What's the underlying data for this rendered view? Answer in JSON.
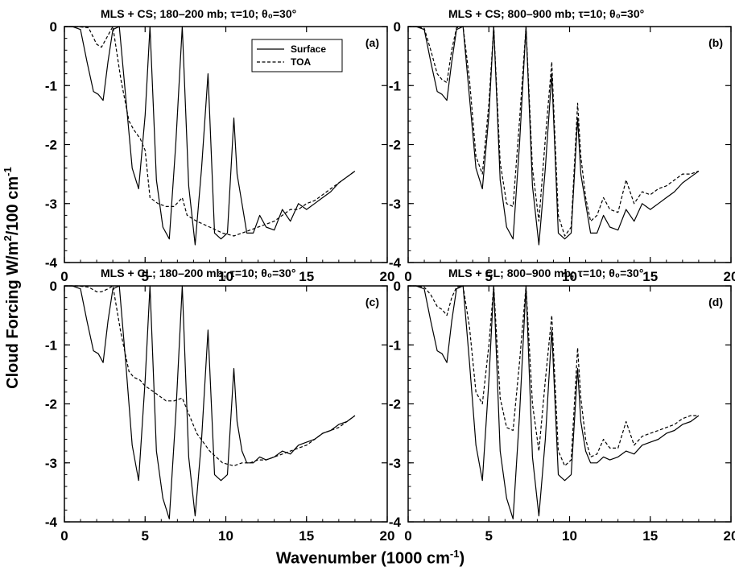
{
  "figure": {
    "ylabel_main": "Cloud Forcing W/m",
    "ylabel_sup1": "2",
    "ylabel_mid": "/100 cm",
    "ylabel_sup2": "-1",
    "xlabel_main": "Wavenumber (1000 cm",
    "xlabel_sup": "-1",
    "xlabel_end": ")"
  },
  "chart_data": [
    {
      "type": "line",
      "panel": "(a)",
      "title": "MLS + CS; 180–200 mb; τ=10; θ₀=30°",
      "xlim": [
        0,
        20
      ],
      "ylim": [
        -4,
        0
      ],
      "xticks": [
        "0",
        "5",
        "10",
        "15",
        "20"
      ],
      "yticks": [
        "0",
        "-1",
        "-2",
        "-3",
        "-4"
      ],
      "legend": [
        "Surface",
        "TOA"
      ],
      "series": [
        {
          "name": "Surface",
          "style": "solid",
          "x": [
            0,
            0.5,
            1.0,
            1.4,
            1.8,
            2.1,
            2.4,
            2.7,
            3.0,
            3.4,
            3.8,
            4.2,
            4.6,
            5.0,
            5.3,
            5.7,
            6.1,
            6.5,
            6.9,
            7.3,
            7.7,
            8.1,
            8.5,
            8.9,
            9.3,
            9.7,
            10.1,
            10.5,
            10.7,
            11.0,
            11.3,
            11.7,
            12.1,
            12.5,
            13.0,
            13.5,
            14.0,
            14.5,
            15.0,
            15.5,
            16.0,
            16.5,
            17.0,
            17.5,
            18.0
          ],
          "y": [
            0,
            0,
            -0.05,
            -0.6,
            -1.1,
            -1.15,
            -1.25,
            -0.6,
            -0.05,
            0,
            -1.2,
            -2.4,
            -2.75,
            -1.5,
            0,
            -2.6,
            -3.4,
            -3.6,
            -2.0,
            0,
            -2.7,
            -3.7,
            -2.4,
            -0.8,
            -3.5,
            -3.6,
            -3.5,
            -1.55,
            -2.5,
            -3.0,
            -3.5,
            -3.5,
            -3.2,
            -3.4,
            -3.45,
            -3.1,
            -3.3,
            -3.0,
            -3.1,
            -3.0,
            -2.9,
            -2.8,
            -2.65,
            -2.55,
            -2.45
          ]
        },
        {
          "name": "TOA",
          "style": "dashed",
          "x": [
            0,
            0.8,
            1.5,
            2.0,
            2.3,
            2.7,
            3.0,
            3.5,
            4.0,
            4.3,
            4.7,
            5.0,
            5.3,
            5.8,
            6.3,
            6.8,
            7.3,
            7.6,
            8.2,
            9.0,
            9.8,
            10.5,
            11.0,
            11.5,
            12.0,
            12.5,
            13.0,
            13.5,
            14.0,
            14.5,
            15.0,
            15.5,
            16.0,
            16.5,
            17.0,
            17.5,
            18.0
          ],
          "y": [
            0,
            0,
            -0.02,
            -0.3,
            -0.35,
            -0.15,
            0,
            -0.9,
            -1.6,
            -1.75,
            -1.9,
            -2.1,
            -2.9,
            -3.0,
            -3.05,
            -3.05,
            -2.9,
            -3.2,
            -3.3,
            -3.4,
            -3.5,
            -3.55,
            -3.5,
            -3.45,
            -3.4,
            -3.35,
            -3.3,
            -3.2,
            -3.1,
            -3.1,
            -3.0,
            -2.95,
            -2.85,
            -2.75,
            -2.65,
            -2.55,
            -2.45
          ]
        }
      ]
    },
    {
      "type": "line",
      "panel": "(b)",
      "title": "MLS + CS; 800–900 mb; τ=10; θ₀=30°",
      "xlim": [
        0,
        20
      ],
      "ylim": [
        -4,
        0
      ],
      "xticks": [
        "0",
        "5",
        "10",
        "15",
        "20"
      ],
      "yticks": [
        "0",
        "-1",
        "-2",
        "-3",
        "-4"
      ],
      "series": [
        {
          "name": "Surface",
          "style": "solid",
          "x": [
            0,
            0.5,
            1.0,
            1.4,
            1.8,
            2.1,
            2.4,
            2.7,
            3.0,
            3.4,
            3.8,
            4.2,
            4.6,
            5.0,
            5.3,
            5.7,
            6.1,
            6.5,
            6.9,
            7.3,
            7.7,
            8.1,
            8.5,
            8.9,
            9.3,
            9.7,
            10.1,
            10.5,
            10.7,
            11.0,
            11.3,
            11.7,
            12.1,
            12.5,
            13.0,
            13.5,
            14.0,
            14.5,
            15.0,
            15.5,
            16.0,
            16.5,
            17.0,
            17.5,
            18.0
          ],
          "y": [
            0,
            0,
            -0.05,
            -0.6,
            -1.1,
            -1.15,
            -1.25,
            -0.6,
            -0.05,
            0,
            -1.2,
            -2.4,
            -2.75,
            -1.5,
            0,
            -2.6,
            -3.4,
            -3.6,
            -2.0,
            0,
            -2.7,
            -3.7,
            -2.4,
            -0.8,
            -3.5,
            -3.6,
            -3.5,
            -1.55,
            -2.5,
            -3.0,
            -3.5,
            -3.5,
            -3.2,
            -3.4,
            -3.45,
            -3.1,
            -3.3,
            -3.0,
            -3.1,
            -3.0,
            -2.9,
            -2.8,
            -2.65,
            -2.55,
            -2.45
          ]
        },
        {
          "name": "TOA",
          "style": "dashed",
          "x": [
            0,
            0.5,
            1.0,
            1.4,
            1.8,
            2.1,
            2.4,
            2.7,
            3.0,
            3.4,
            3.8,
            4.2,
            4.6,
            5.0,
            5.3,
            5.7,
            6.1,
            6.5,
            6.9,
            7.3,
            7.7,
            8.1,
            8.5,
            8.9,
            9.3,
            9.7,
            10.1,
            10.5,
            10.7,
            11.0,
            11.3,
            11.7,
            12.1,
            12.5,
            13.0,
            13.5,
            14.0,
            14.5,
            15.0,
            15.5,
            16.0,
            16.5,
            17.0,
            17.5,
            18.0
          ],
          "y": [
            0,
            0,
            -0.03,
            -0.4,
            -0.8,
            -0.9,
            -0.95,
            -0.4,
            -0.02,
            0,
            -0.9,
            -2.2,
            -2.5,
            -1.3,
            0,
            -2.3,
            -3.0,
            -3.05,
            -1.6,
            0,
            -2.4,
            -3.3,
            -1.9,
            -0.6,
            -3.2,
            -3.55,
            -3.4,
            -1.3,
            -2.2,
            -2.9,
            -3.3,
            -3.2,
            -2.9,
            -3.1,
            -3.15,
            -2.6,
            -3.0,
            -2.8,
            -2.85,
            -2.75,
            -2.7,
            -2.6,
            -2.5,
            -2.5,
            -2.45
          ]
        }
      ]
    },
    {
      "type": "line",
      "panel": "(c)",
      "title": "MLS + CL; 180–200 mb; τ=10; θ₀=30°",
      "xlim": [
        0,
        20
      ],
      "ylim": [
        -4,
        0
      ],
      "xticks": [
        "0",
        "5",
        "10",
        "15",
        "20"
      ],
      "yticks": [
        "0",
        "-1",
        "-2",
        "-3",
        "-4"
      ],
      "series": [
        {
          "name": "Surface",
          "style": "solid",
          "x": [
            0,
            0.5,
            1.0,
            1.4,
            1.8,
            2.1,
            2.4,
            2.7,
            3.0,
            3.4,
            3.8,
            4.2,
            4.6,
            5.0,
            5.3,
            5.7,
            6.1,
            6.5,
            6.9,
            7.3,
            7.7,
            8.1,
            8.5,
            8.9,
            9.3,
            9.7,
            10.1,
            10.5,
            10.7,
            11.0,
            11.3,
            11.7,
            12.1,
            12.5,
            13.0,
            13.5,
            14.0,
            14.5,
            15.0,
            15.5,
            16.0,
            16.5,
            17.0,
            17.5,
            18.0
          ],
          "y": [
            0,
            0,
            -0.05,
            -0.6,
            -1.1,
            -1.15,
            -1.3,
            -0.6,
            -0.05,
            0,
            -1.3,
            -2.7,
            -3.3,
            -1.6,
            0,
            -2.8,
            -3.6,
            -3.95,
            -2.2,
            0,
            -2.9,
            -3.9,
            -2.6,
            -0.75,
            -3.2,
            -3.3,
            -3.2,
            -1.4,
            -2.3,
            -2.8,
            -3.0,
            -3.0,
            -2.9,
            -2.95,
            -2.9,
            -2.8,
            -2.85,
            -2.7,
            -2.65,
            -2.6,
            -2.5,
            -2.45,
            -2.35,
            -2.3,
            -2.2
          ]
        },
        {
          "name": "TOA",
          "style": "dashed",
          "x": [
            0,
            0.8,
            1.5,
            2.0,
            2.3,
            2.7,
            3.0,
            3.5,
            4.0,
            4.3,
            4.7,
            5.0,
            5.3,
            5.8,
            6.3,
            6.8,
            7.3,
            7.6,
            8.2,
            9.0,
            9.8,
            10.5,
            11.0,
            11.5,
            12.0,
            12.5,
            13.0,
            13.5,
            14.0,
            14.5,
            15.0,
            15.5,
            16.0,
            16.5,
            17.0,
            17.5,
            18.0
          ],
          "y": [
            0,
            0,
            -0.02,
            -0.1,
            -0.1,
            -0.05,
            0,
            -0.8,
            -1.45,
            -1.55,
            -1.6,
            -1.7,
            -1.75,
            -1.85,
            -1.95,
            -1.95,
            -1.9,
            -2.1,
            -2.5,
            -2.8,
            -3.0,
            -3.05,
            -3.0,
            -3.0,
            -2.95,
            -2.95,
            -2.9,
            -2.85,
            -2.8,
            -2.75,
            -2.7,
            -2.6,
            -2.5,
            -2.45,
            -2.4,
            -2.3,
            -2.2
          ]
        }
      ]
    },
    {
      "type": "line",
      "panel": "(d)",
      "title": "MLS + CL; 800–900 mb; τ=10; θ₀=30°",
      "xlim": [
        0,
        20
      ],
      "ylim": [
        -4,
        0
      ],
      "xticks": [
        "0",
        "5",
        "10",
        "15",
        "20"
      ],
      "yticks": [
        "0",
        "-1",
        "-2",
        "-3",
        "-4"
      ],
      "series": [
        {
          "name": "Surface",
          "style": "solid",
          "x": [
            0,
            0.5,
            1.0,
            1.4,
            1.8,
            2.1,
            2.4,
            2.7,
            3.0,
            3.4,
            3.8,
            4.2,
            4.6,
            5.0,
            5.3,
            5.7,
            6.1,
            6.5,
            6.9,
            7.3,
            7.7,
            8.1,
            8.5,
            8.9,
            9.3,
            9.7,
            10.1,
            10.5,
            10.7,
            11.0,
            11.3,
            11.7,
            12.1,
            12.5,
            13.0,
            13.5,
            14.0,
            14.5,
            15.0,
            15.5,
            16.0,
            16.5,
            17.0,
            17.5,
            18.0
          ],
          "y": [
            0,
            0,
            -0.05,
            -0.6,
            -1.1,
            -1.15,
            -1.3,
            -0.6,
            -0.05,
            0,
            -1.3,
            -2.7,
            -3.3,
            -1.6,
            0,
            -2.8,
            -3.6,
            -3.95,
            -2.2,
            0,
            -2.9,
            -3.9,
            -2.6,
            -0.75,
            -3.2,
            -3.3,
            -3.2,
            -1.4,
            -2.3,
            -2.8,
            -3.0,
            -3.0,
            -2.9,
            -2.95,
            -2.9,
            -2.8,
            -2.85,
            -2.7,
            -2.65,
            -2.6,
            -2.5,
            -2.45,
            -2.35,
            -2.3,
            -2.2
          ]
        },
        {
          "name": "TOA",
          "style": "dashed",
          "x": [
            0,
            0.5,
            1.0,
            1.4,
            1.8,
            2.1,
            2.4,
            2.7,
            3.0,
            3.4,
            3.8,
            4.2,
            4.6,
            5.0,
            5.3,
            5.7,
            6.1,
            6.5,
            6.9,
            7.3,
            7.7,
            8.1,
            8.5,
            8.9,
            9.3,
            9.7,
            10.1,
            10.5,
            10.7,
            11.0,
            11.3,
            11.7,
            12.1,
            12.5,
            13.0,
            13.5,
            14.0,
            14.5,
            15.0,
            15.5,
            16.0,
            16.5,
            17.0,
            17.5,
            18.0
          ],
          "y": [
            0,
            0,
            -0.02,
            -0.15,
            -0.35,
            -0.4,
            -0.5,
            -0.2,
            -0.02,
            0,
            -0.7,
            -1.8,
            -2.0,
            -1.0,
            0,
            -1.9,
            -2.4,
            -2.45,
            -1.3,
            0,
            -2.0,
            -2.8,
            -1.6,
            -0.5,
            -2.8,
            -3.05,
            -2.95,
            -1.05,
            -1.9,
            -2.6,
            -2.9,
            -2.85,
            -2.6,
            -2.75,
            -2.75,
            -2.3,
            -2.7,
            -2.55,
            -2.5,
            -2.45,
            -2.4,
            -2.35,
            -2.25,
            -2.2,
            -2.2
          ]
        }
      ]
    }
  ]
}
